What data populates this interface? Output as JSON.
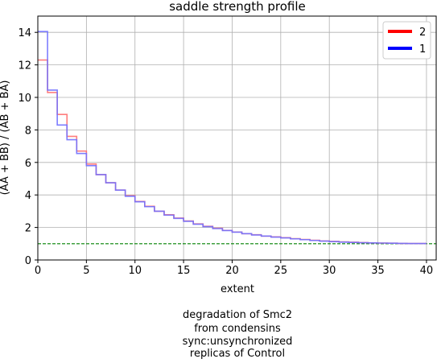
{
  "chart_data": {
    "type": "line",
    "step": true,
    "title": "saddle strength profile",
    "xlabel": "extent",
    "ylabel": "(AA + BB) / (AB + BA)",
    "xlim": [
      0,
      41
    ],
    "ylim": [
      0,
      15
    ],
    "xticks": [
      0,
      5,
      10,
      15,
      20,
      25,
      30,
      35,
      40
    ],
    "yticks": [
      0,
      2,
      4,
      6,
      8,
      10,
      12,
      14
    ],
    "grid": true,
    "legend_position": "top-right",
    "reference_line": {
      "y": 1.0,
      "color": "#008000",
      "style": "dashed"
    },
    "x": [
      0,
      1,
      2,
      3,
      4,
      5,
      6,
      7,
      8,
      9,
      10,
      11,
      12,
      13,
      14,
      15,
      16,
      17,
      18,
      19,
      20,
      21,
      22,
      23,
      24,
      25,
      26,
      27,
      28,
      29,
      30,
      31,
      32,
      33,
      34,
      35,
      36,
      37,
      38,
      39
    ],
    "series": [
      {
        "name": "2",
        "color": "#ff0000",
        "plot_color": "#ff7070",
        "values": [
          12.3,
          10.3,
          8.95,
          7.6,
          6.7,
          5.9,
          5.25,
          4.75,
          4.3,
          3.95,
          3.6,
          3.3,
          3.0,
          2.78,
          2.58,
          2.4,
          2.22,
          2.07,
          1.95,
          1.82,
          1.72,
          1.62,
          1.55,
          1.47,
          1.42,
          1.37,
          1.31,
          1.26,
          1.21,
          1.17,
          1.14,
          1.11,
          1.09,
          1.07,
          1.05,
          1.04,
          1.03,
          1.02,
          1.01,
          1.01
        ]
      },
      {
        "name": "1",
        "color": "#0000ff",
        "plot_color": "#7070ff",
        "values": [
          14.05,
          10.45,
          8.3,
          7.4,
          6.55,
          5.8,
          5.25,
          4.75,
          4.3,
          3.92,
          3.58,
          3.28,
          3.0,
          2.76,
          2.56,
          2.38,
          2.2,
          2.05,
          1.93,
          1.81,
          1.71,
          1.62,
          1.54,
          1.47,
          1.41,
          1.36,
          1.3,
          1.25,
          1.2,
          1.16,
          1.13,
          1.1,
          1.08,
          1.06,
          1.05,
          1.04,
          1.03,
          1.02,
          1.01,
          1.01
        ]
      }
    ],
    "caption": [
      "degradation of Smc2",
      "from condensins",
      "sync:unsynchronized",
      "replicas of Control"
    ]
  }
}
